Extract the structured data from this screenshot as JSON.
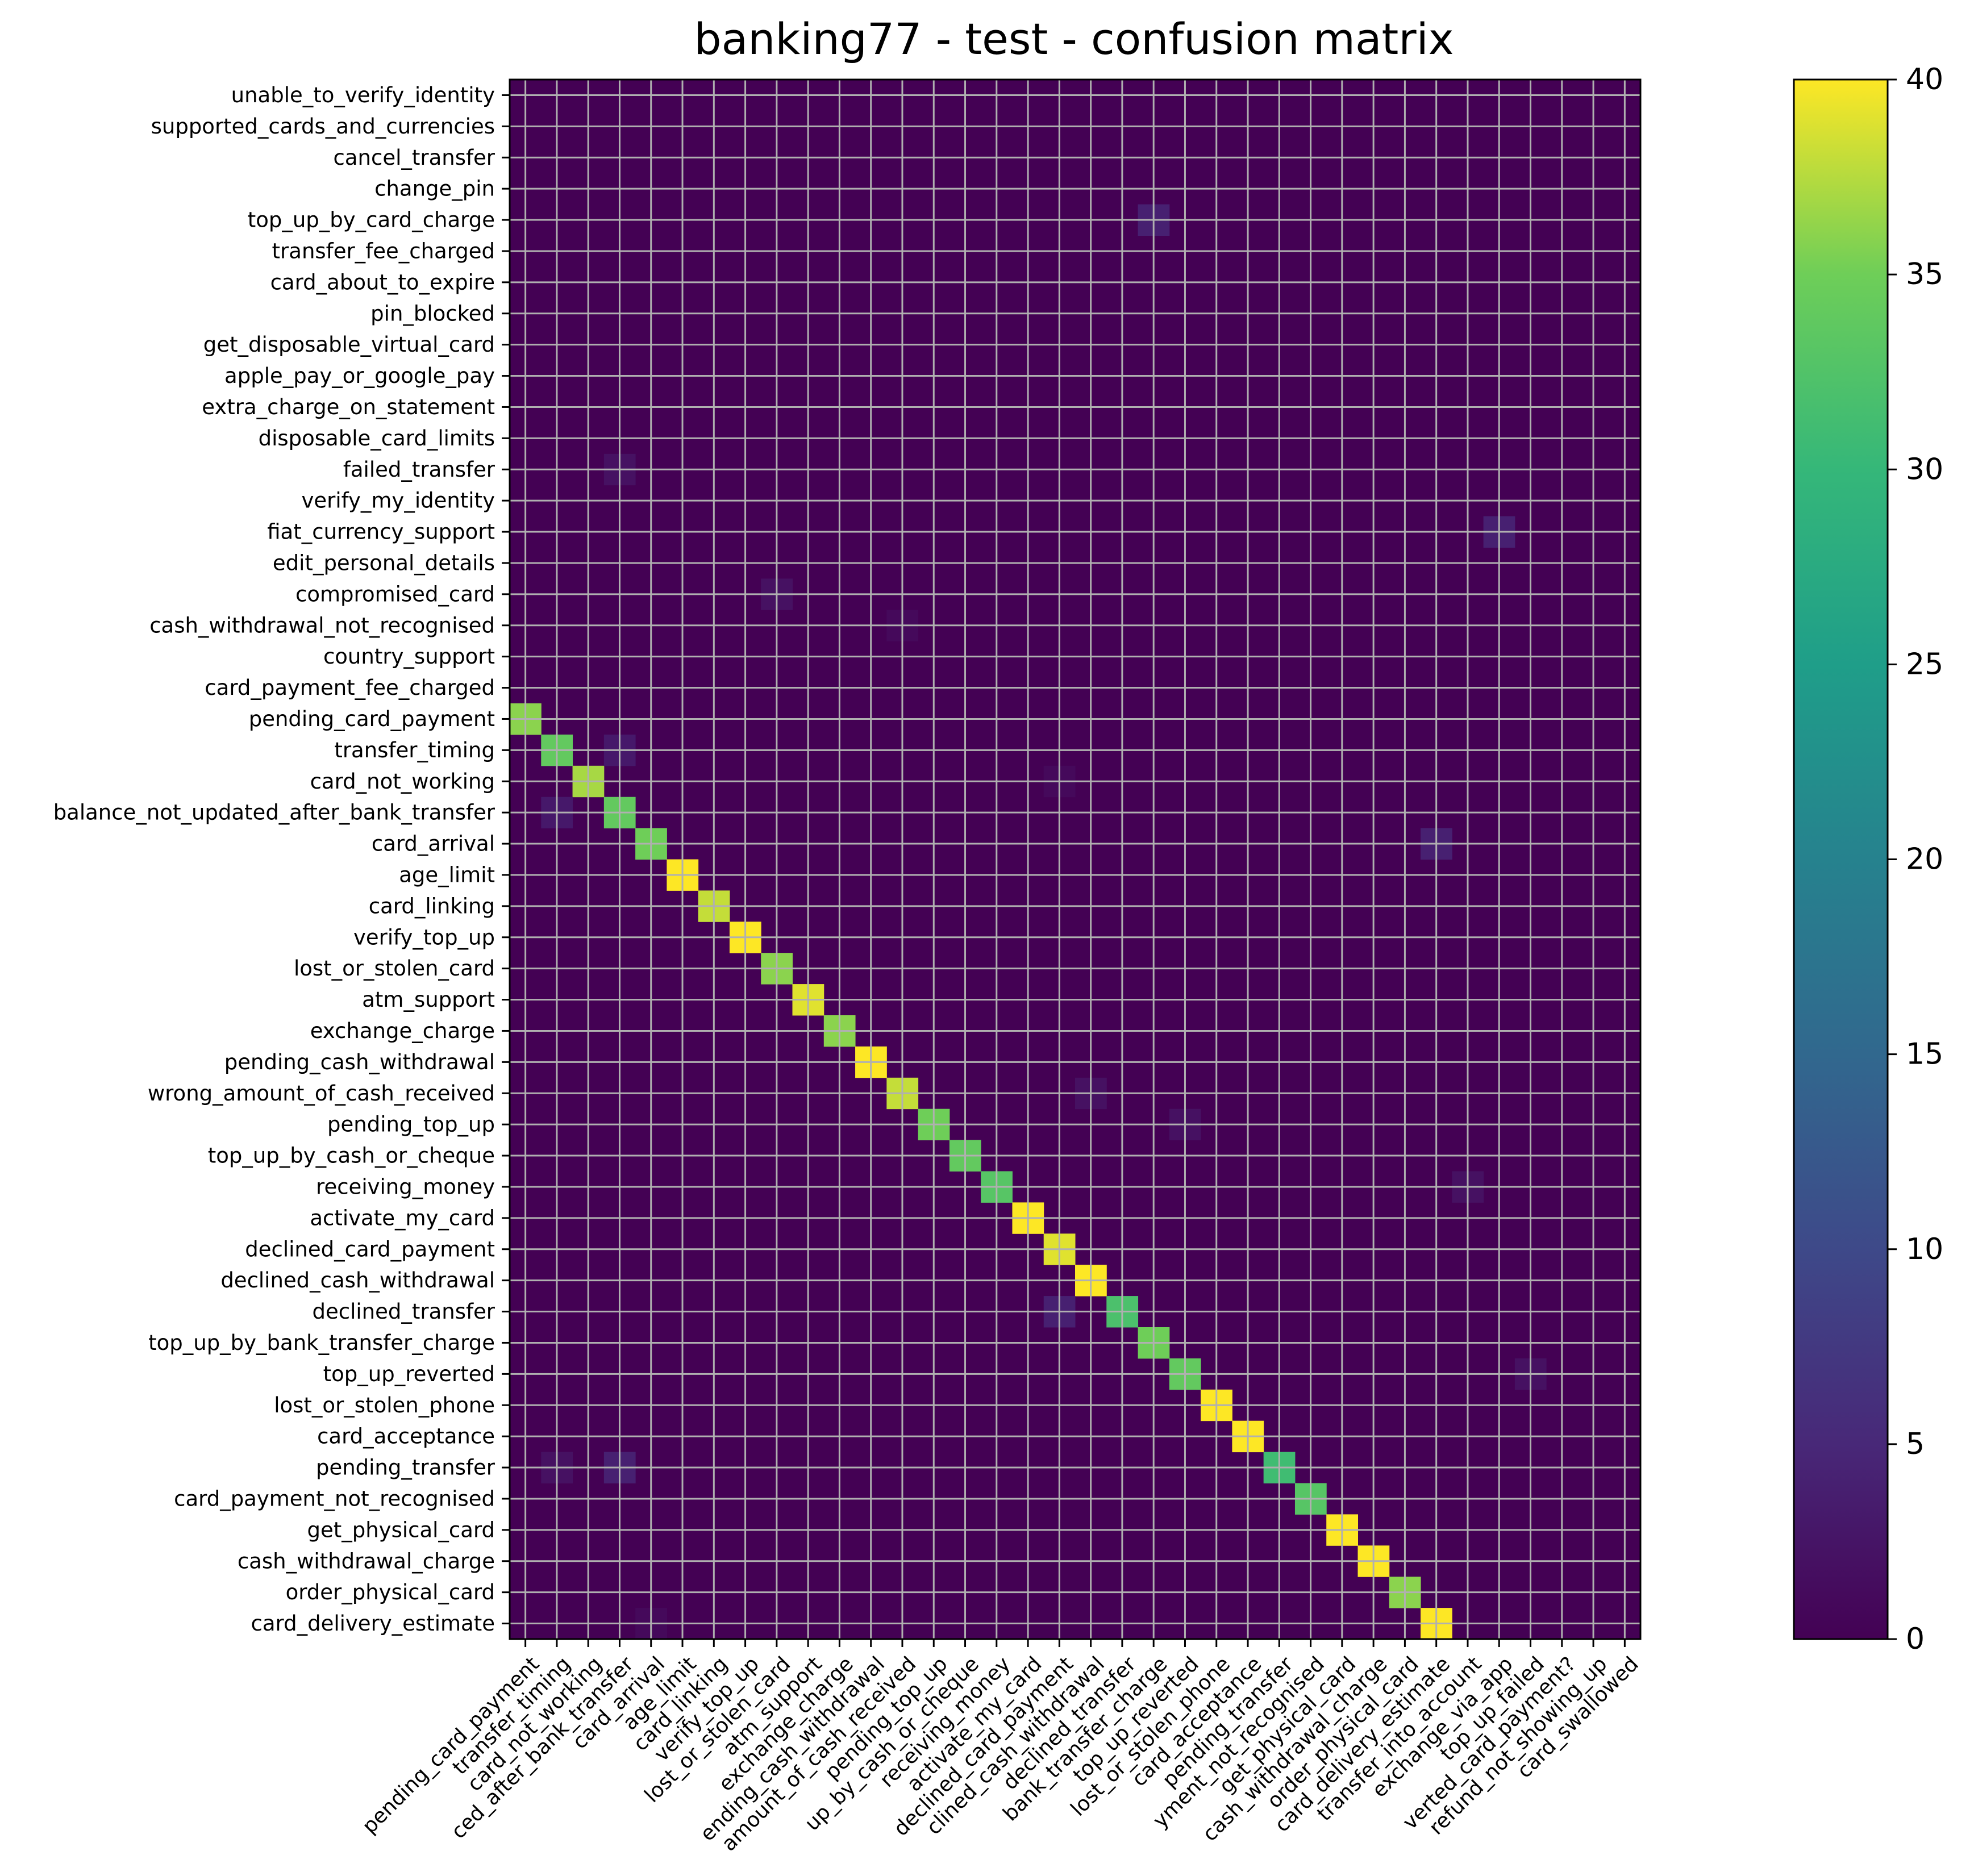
{
  "chart_data": {
    "type": "heatmap",
    "title": "banking77 - test - confusion matrix",
    "xlabel": "",
    "ylabel": "",
    "y_categories": [
      "unable_to_verify_identity",
      "supported_cards_and_currencies",
      "cancel_transfer",
      "change_pin",
      "top_up_by_card_charge",
      "transfer_fee_charged",
      "card_about_to_expire",
      "pin_blocked",
      "get_disposable_virtual_card",
      "apple_pay_or_google_pay",
      "extra_charge_on_statement",
      "disposable_card_limits",
      "failed_transfer",
      "verify_my_identity",
      "fiat_currency_support",
      "edit_personal_details",
      "compromised_card",
      "cash_withdrawal_not_recognised",
      "country_support",
      "card_payment_fee_charged",
      "pending_card_payment",
      "transfer_timing",
      "card_not_working",
      "balance_not_updated_after_bank_transfer",
      "card_arrival",
      "age_limit",
      "card_linking",
      "verify_top_up",
      "lost_or_stolen_card",
      "atm_support",
      "exchange_charge",
      "pending_cash_withdrawal",
      "wrong_amount_of_cash_received",
      "pending_top_up",
      "top_up_by_cash_or_cheque",
      "receiving_money",
      "activate_my_card",
      "declined_card_payment",
      "declined_cash_withdrawal",
      "declined_transfer",
      "top_up_by_bank_transfer_charge",
      "top_up_reverted",
      "lost_or_stolen_phone",
      "card_acceptance",
      "pending_transfer",
      "card_payment_not_recognised",
      "get_physical_card",
      "cash_withdrawal_charge",
      "order_physical_card",
      "card_delivery_estimate"
    ],
    "x_categories": [
      "pending_card_payment",
      "transfer_timing",
      "card_not_working",
      "balance_not_updated_after_bank_transfer",
      "card_arrival",
      "age_limit",
      "card_linking",
      "verify_top_up",
      "lost_or_stolen_card",
      "atm_support",
      "exchange_charge",
      "pending_cash_withdrawal",
      "wrong_amount_of_cash_received",
      "pending_top_up",
      "top_up_by_cash_or_cheque",
      "receiving_money",
      "activate_my_card",
      "declined_card_payment",
      "declined_cash_withdrawal",
      "declined_transfer",
      "top_up_by_bank_transfer_charge",
      "top_up_reverted",
      "lost_or_stolen_phone",
      "card_acceptance",
      "pending_transfer",
      "card_payment_not_recognised",
      "get_physical_card",
      "cash_withdrawal_charge",
      "order_physical_card",
      "card_delivery_estimate",
      "transfer_into_account",
      "exchange_via_app",
      "top_up_failed",
      "reverted_card_payment?",
      "refund_not_showing_up",
      "card_swallowed"
    ],
    "x_tick_display": [
      "pending_card_payment",
      "transfer_timing",
      "card_not_working",
      "ced_after_bank_transfer",
      "card_arrival",
      "age_limit",
      "card_linking",
      "verify_top_up",
      "lost_or_stolen_card",
      "atm_support",
      "exchange_charge",
      "ending_cash_withdrawal",
      "amount_of_cash_received",
      "pending_top_up",
      "up_by_cash_or_cheque",
      "receiving_money",
      "activate_my_card",
      "declined_card_payment",
      "clined_cash_withdrawal",
      "declined_transfer",
      "bank_transfer_charge",
      "top_up_reverted",
      "lost_or_stolen_phone",
      "card_acceptance",
      "pending_transfer",
      "yment_not_recognised",
      "get_physical_card",
      "cash_withdrawal_charge",
      "order_physical_card",
      "card_delivery_estimate",
      "transfer_into_account",
      "exchange_via_app",
      "top_up_failed",
      "verted_card_payment?",
      "refund_not_showing_up",
      "card_swallowed"
    ],
    "diagonal": [
      {
        "row": 20,
        "col": 0,
        "value": 36
      },
      {
        "row": 21,
        "col": 1,
        "value": 34
      },
      {
        "row": 22,
        "col": 2,
        "value": 37
      },
      {
        "row": 23,
        "col": 3,
        "value": 34
      },
      {
        "row": 24,
        "col": 4,
        "value": 35
      },
      {
        "row": 25,
        "col": 5,
        "value": 40
      },
      {
        "row": 26,
        "col": 6,
        "value": 38
      },
      {
        "row": 27,
        "col": 7,
        "value": 40
      },
      {
        "row": 28,
        "col": 8,
        "value": 36
      },
      {
        "row": 29,
        "col": 9,
        "value": 39
      },
      {
        "row": 30,
        "col": 10,
        "value": 36
      },
      {
        "row": 31,
        "col": 11,
        "value": 40
      },
      {
        "row": 32,
        "col": 12,
        "value": 38
      },
      {
        "row": 33,
        "col": 13,
        "value": 35
      },
      {
        "row": 34,
        "col": 14,
        "value": 34
      },
      {
        "row": 35,
        "col": 15,
        "value": 33
      },
      {
        "row": 36,
        "col": 16,
        "value": 40
      },
      {
        "row": 37,
        "col": 17,
        "value": 39
      },
      {
        "row": 38,
        "col": 18,
        "value": 40
      },
      {
        "row": 39,
        "col": 19,
        "value": 32
      },
      {
        "row": 40,
        "col": 20,
        "value": 35
      },
      {
        "row": 41,
        "col": 21,
        "value": 34
      },
      {
        "row": 42,
        "col": 22,
        "value": 40
      },
      {
        "row": 43,
        "col": 23,
        "value": 40
      },
      {
        "row": 44,
        "col": 24,
        "value": 31
      },
      {
        "row": 45,
        "col": 25,
        "value": 33
      },
      {
        "row": 46,
        "col": 26,
        "value": 40
      },
      {
        "row": 47,
        "col": 27,
        "value": 40
      },
      {
        "row": 48,
        "col": 28,
        "value": 36
      },
      {
        "row": 49,
        "col": 29,
        "value": 40
      }
    ],
    "off_diagonal": [
      {
        "row": 4,
        "col": 20,
        "value": 4
      },
      {
        "row": 12,
        "col": 3,
        "value": 2
      },
      {
        "row": 14,
        "col": 31,
        "value": 4
      },
      {
        "row": 16,
        "col": 8,
        "value": 2
      },
      {
        "row": 17,
        "col": 12,
        "value": 1
      },
      {
        "row": 21,
        "col": 3,
        "value": 3
      },
      {
        "row": 22,
        "col": 17,
        "value": 1
      },
      {
        "row": 23,
        "col": 1,
        "value": 3
      },
      {
        "row": 24,
        "col": 29,
        "value": 4
      },
      {
        "row": 32,
        "col": 18,
        "value": 2
      },
      {
        "row": 33,
        "col": 21,
        "value": 2
      },
      {
        "row": 35,
        "col": 30,
        "value": 2
      },
      {
        "row": 39,
        "col": 17,
        "value": 4
      },
      {
        "row": 41,
        "col": 32,
        "value": 2
      },
      {
        "row": 44,
        "col": 1,
        "value": 2
      },
      {
        "row": 44,
        "col": 3,
        "value": 4
      },
      {
        "row": 49,
        "col": 4,
        "value": 1
      }
    ],
    "colorbar": {
      "min": 0,
      "max": 40,
      "ticks": [
        0,
        5,
        10,
        15,
        20,
        25,
        30,
        35,
        40
      ],
      "tick_labels": [
        "0",
        "5",
        "10",
        "15",
        "20",
        "25",
        "30",
        "35",
        "40"
      ],
      "colormap": "viridis"
    },
    "grid": true,
    "colors": {
      "zero": "#440154",
      "grid": "#b0b0b0",
      "text": "#000000"
    }
  }
}
